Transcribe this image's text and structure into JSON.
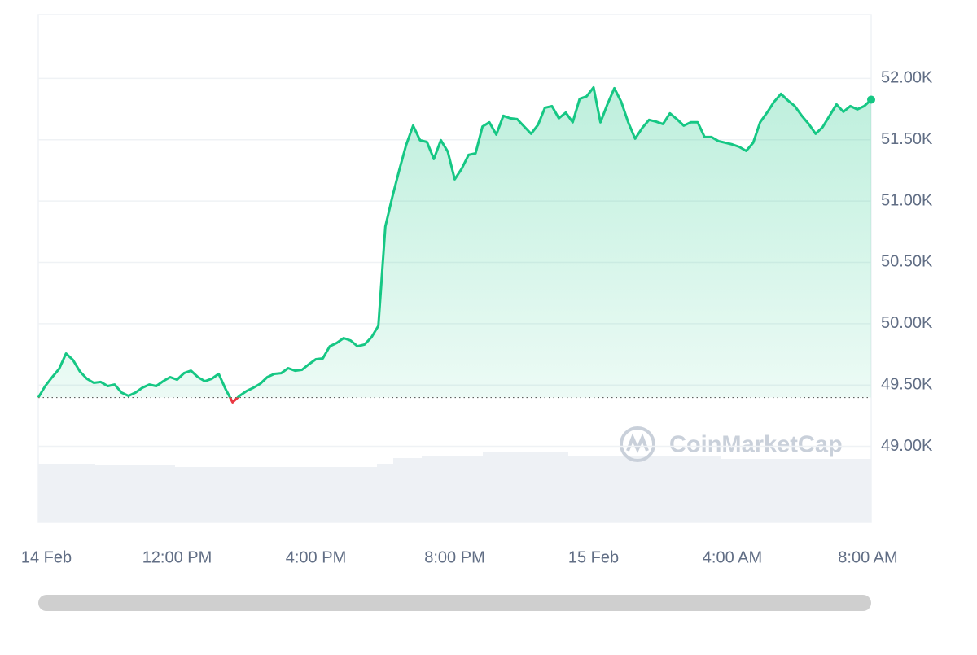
{
  "chart_data": {
    "type": "line",
    "watermark": "CoinMarketCap",
    "color": "#16c784",
    "down_color": "#ea3943",
    "x": [
      8,
      8.2,
      8.4,
      8.6,
      8.8,
      9,
      9.2,
      9.4,
      9.6,
      9.8,
      10,
      10.2,
      10.4,
      10.6,
      10.8,
      11,
      11.2,
      11.4,
      11.6,
      11.8,
      12,
      12.2,
      12.4,
      12.6,
      12.8,
      13,
      13.2,
      13.4,
      13.6,
      13.8,
      14,
      14.2,
      14.4,
      14.6,
      14.8,
      15,
      15.2,
      15.4,
      15.6,
      15.8,
      16,
      16.2,
      16.4,
      16.6,
      16.8,
      17,
      17.2,
      17.4,
      17.6,
      17.8,
      18,
      18.2,
      18.4,
      18.6,
      18.8,
      19,
      19.2,
      19.4,
      19.6,
      19.8,
      20,
      20.2,
      20.4,
      20.6,
      20.8,
      21,
      21.2,
      21.4,
      21.6,
      21.8,
      22,
      22.2,
      22.4,
      22.6,
      22.8,
      23,
      23.2,
      23.4,
      23.6,
      23.8,
      24,
      24.2,
      24.4,
      24.6,
      24.8,
      25,
      25.2,
      25.4,
      25.6,
      25.8,
      26,
      26.2,
      26.4,
      26.6,
      26.8,
      27,
      27.2,
      27.4,
      27.6,
      27.8,
      28,
      28.2,
      28.4,
      28.6,
      28.8,
      29,
      29.2,
      29.4,
      29.6,
      29.8,
      30,
      30.2,
      30.4,
      30.6,
      30.8,
      31,
      31.2,
      31.4,
      31.6,
      31.8,
      32
    ],
    "values": [
      49398,
      49491,
      49564,
      49631,
      49757,
      49704,
      49611,
      49551,
      49518,
      49525,
      49491,
      49504,
      49438,
      49412,
      49438,
      49478,
      49504,
      49491,
      49531,
      49564,
      49544,
      49597,
      49617,
      49564,
      49531,
      49551,
      49591,
      49465,
      49359,
      49412,
      49451,
      49478,
      49511,
      49564,
      49591,
      49597,
      49637,
      49617,
      49624,
      49670,
      49710,
      49717,
      49816,
      49843,
      49883,
      49863,
      49816,
      49830,
      49889,
      49982,
      50792,
      51031,
      51250,
      51456,
      51615,
      51496,
      51482,
      51343,
      51496,
      51403,
      51177,
      51263,
      51376,
      51389,
      51608,
      51642,
      51542,
      51695,
      51675,
      51668,
      51608,
      51549,
      51622,
      51761,
      51774,
      51675,
      51721,
      51642,
      51834,
      51854,
      51927,
      51642,
      51788,
      51920,
      51808,
      51642,
      51509,
      51595,
      51662,
      51648,
      51628,
      51715,
      51668,
      51615,
      51642,
      51642,
      51522,
      51522,
      51489,
      51476,
      51462,
      51442,
      51409,
      51476,
      51642,
      51721,
      51808,
      51874,
      51821,
      51774,
      51695,
      51628,
      51549,
      51602,
      51695,
      51788,
      51728,
      51774,
      51748,
      51774,
      51827
    ],
    "xlim": [
      8,
      32
    ],
    "ylim": [
      48380,
      52520
    ],
    "xticks": [
      {
        "value": 8,
        "label": "14 Feb"
      },
      {
        "value": 12,
        "label": "12:00 PM"
      },
      {
        "value": 16,
        "label": "4:00 PM"
      },
      {
        "value": 20,
        "label": "8:00 PM"
      },
      {
        "value": 24,
        "label": "15 Feb"
      },
      {
        "value": 28,
        "label": "4:00 AM"
      },
      {
        "value": 32,
        "label": "8:00 AM"
      }
    ],
    "yticks": [
      {
        "value": 49000,
        "label": "49.00K"
      },
      {
        "value": 49500,
        "label": "49.50K"
      },
      {
        "value": 50000,
        "label": "50.00K"
      },
      {
        "value": 50500,
        "label": "50.50K"
      },
      {
        "value": 51000,
        "label": "51.00K"
      },
      {
        "value": 51500,
        "label": "51.50K"
      },
      {
        "value": 52000,
        "label": "52.00K"
      }
    ],
    "grid": true
  }
}
